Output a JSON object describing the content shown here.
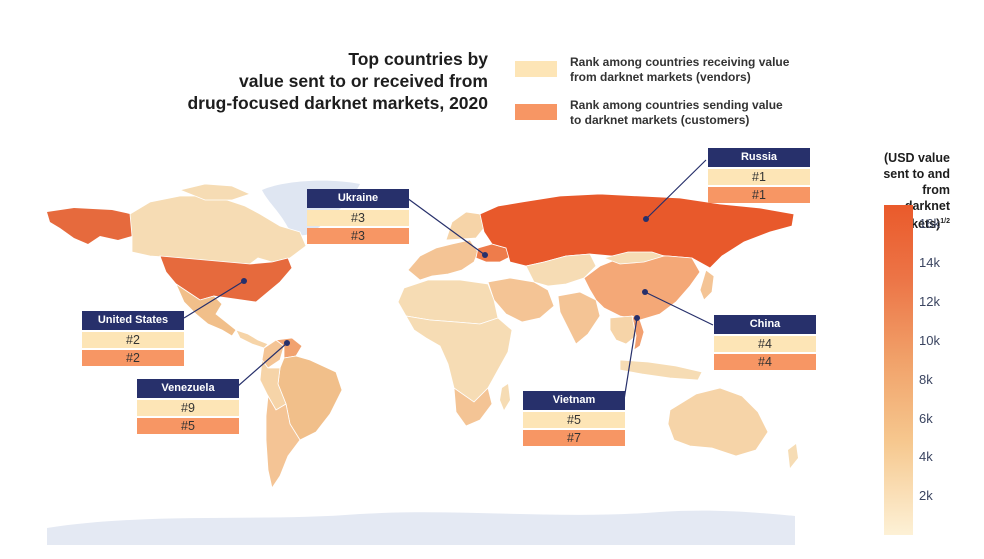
{
  "title": [
    "Top countries by",
    "value sent to or received from",
    "drug-focused darknet markets, 2020"
  ],
  "legend": [
    {
      "lines": [
        "Rank among countries receiving value",
        "from darknet markets (vendors)"
      ],
      "color": "#fde5b6"
    },
    {
      "lines": [
        "Rank among countries sending value",
        "to darknet markets (customers)"
      ],
      "color": "#f79664"
    }
  ],
  "colors": {
    "ocean": "#ffffff",
    "land_default": "#f6dcb4",
    "highlight_recv": "#fde5b6",
    "highlight_send": "#f79664",
    "label_bg": "#27306b",
    "antarctica": "#e4e9f3",
    "no_data": "#dfe6f2"
  },
  "countries": [
    {
      "name": "Russia",
      "recv_rank": "#1",
      "send_rank": "#1",
      "fill": "#e8592b"
    },
    {
      "name": "Ukraine",
      "recv_rank": "#3",
      "send_rank": "#3",
      "fill": "#ee7c4b"
    },
    {
      "name": "United States",
      "recv_rank": "#2",
      "send_rank": "#2",
      "fill": "#e66a3d"
    },
    {
      "name": "China",
      "recv_rank": "#4",
      "send_rank": "#4",
      "fill": "#f4a877"
    },
    {
      "name": "Venezuela",
      "recv_rank": "#9",
      "send_rank": "#5",
      "fill": "#f1a26f"
    },
    {
      "name": "Vietnam",
      "recv_rank": "#5",
      "send_rank": "#7",
      "fill": "#f2a070"
    }
  ],
  "scale": {
    "title": [
      "(USD value",
      "sent to and from",
      "darknet markets)"
    ],
    "superscript": "1/2",
    "ticks": [
      "16k",
      "14k",
      "12k",
      "10k",
      "8k",
      "6k",
      "4k",
      "2k"
    ],
    "tick_values": [
      16000,
      14000,
      12000,
      10000,
      8000,
      6000,
      4000,
      2000
    ],
    "max": 17000,
    "min": 0
  }
}
